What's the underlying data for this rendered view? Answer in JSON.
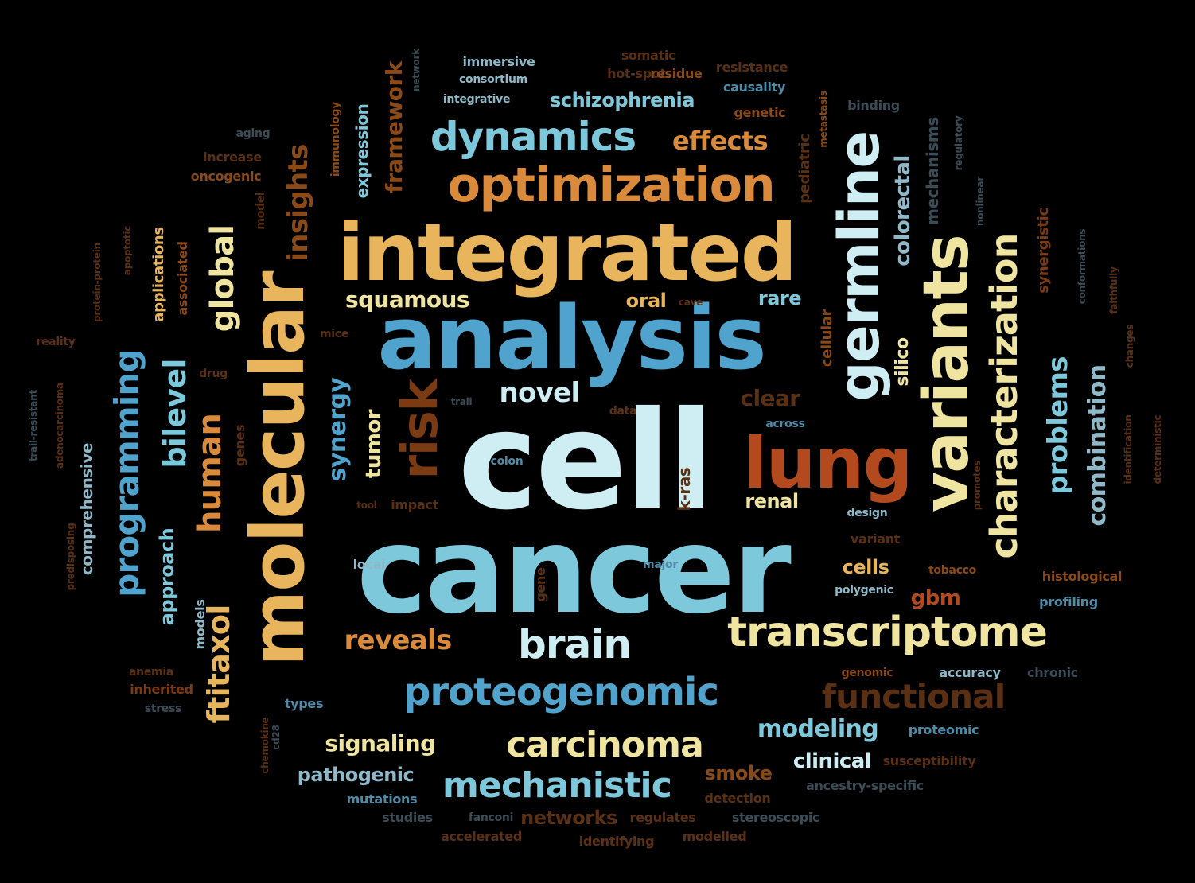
{
  "palette": {
    "cyan": "#cfeef3",
    "lightblue": "#7ec8dc",
    "blue": "#4fa3cc",
    "midblue": "#6fb4d6",
    "yellow": "#efe4a0",
    "gold": "#e8b45c",
    "orange": "#d98a3a",
    "rust": "#b24a1e",
    "brown": "#7a3a12",
    "darkorange": "#8a4a18",
    "slate": "#8fb9c9",
    "dimblue": "#4f8aa6",
    "dimbrown": "#5a3014",
    "dimgray": "#3a4c55"
  },
  "words": [
    {
      "text": "cell",
      "c": "cyan"
    },
    {
      "text": "cancer",
      "c": "lightblue"
    },
    {
      "text": "analysis",
      "c": "blue"
    },
    {
      "text": "integrated",
      "c": "gold"
    },
    {
      "text": "molecular",
      "c": "gold"
    },
    {
      "text": "lung",
      "c": "rust"
    },
    {
      "text": "variants",
      "c": "yellow"
    },
    {
      "text": "germline",
      "c": "cyan"
    },
    {
      "text": "optimization",
      "c": "orange"
    },
    {
      "text": "dynamics",
      "c": "lightblue"
    },
    {
      "text": "transcriptome",
      "c": "yellow"
    },
    {
      "text": "brain",
      "c": "cyan"
    },
    {
      "text": "proteogenomic",
      "c": "blue"
    },
    {
      "text": "characterization",
      "c": "yellow"
    },
    {
      "text": "carcinoma",
      "c": "yellow"
    },
    {
      "text": "mechanistic",
      "c": "lightblue"
    },
    {
      "text": "functional",
      "c": "dimbrown"
    },
    {
      "text": "programming",
      "c": "blue"
    },
    {
      "text": "human",
      "c": "orange"
    },
    {
      "text": "risk",
      "c": "brown"
    },
    {
      "text": "ftitaxol",
      "c": "gold"
    },
    {
      "text": "global",
      "c": "yellow"
    },
    {
      "text": "bilevel",
      "c": "lightblue"
    },
    {
      "text": "insights",
      "c": "darkorange"
    },
    {
      "text": "problems",
      "c": "lightblue"
    },
    {
      "text": "combination",
      "c": "slate"
    },
    {
      "text": "synergy",
      "c": "blue"
    },
    {
      "text": "framework",
      "c": "darkorange"
    },
    {
      "text": "schizophrenia",
      "c": "lightblue"
    },
    {
      "text": "effects",
      "c": "orange"
    },
    {
      "text": "squamous",
      "c": "yellow"
    },
    {
      "text": "novel",
      "c": "cyan"
    },
    {
      "text": "reveals",
      "c": "orange"
    },
    {
      "text": "modeling",
      "c": "lightblue"
    },
    {
      "text": "signaling",
      "c": "yellow"
    },
    {
      "text": "pathogenic",
      "c": "slate"
    },
    {
      "text": "clinical",
      "c": "cyan"
    },
    {
      "text": "smoke",
      "c": "darkorange"
    },
    {
      "text": "networks",
      "c": "dimbrown"
    },
    {
      "text": "tumor",
      "c": "yellow"
    },
    {
      "text": "colorectal",
      "c": "slate"
    },
    {
      "text": "renal",
      "c": "yellow"
    },
    {
      "text": "clear",
      "c": "dimbrown"
    },
    {
      "text": "oral",
      "c": "gold"
    },
    {
      "text": "rare",
      "c": "lightblue"
    },
    {
      "text": "cells",
      "c": "gold"
    },
    {
      "text": "gbm",
      "c": "rust"
    },
    {
      "text": "silico",
      "c": "yellow"
    },
    {
      "text": "approach",
      "c": "lightblue"
    },
    {
      "text": "expression",
      "c": "lightblue"
    },
    {
      "text": "comprehensive",
      "c": "slate"
    },
    {
      "text": "mechanisms",
      "c": "dimgray"
    },
    {
      "text": "synergistic",
      "c": "brown"
    },
    {
      "text": "pediatric",
      "c": "dimbrown"
    },
    {
      "text": "cellular",
      "c": "darkorange"
    },
    {
      "text": "applications",
      "c": "gold"
    },
    {
      "text": "associated",
      "c": "darkorange"
    },
    {
      "text": "genes",
      "c": "dimbrown"
    },
    {
      "text": "gene",
      "c": "dimbrown"
    },
    {
      "text": "k-ras",
      "c": "dimbrown"
    },
    {
      "text": "models",
      "c": "slate"
    },
    {
      "text": "immersive",
      "c": "slate"
    },
    {
      "text": "consortium",
      "c": "slate"
    },
    {
      "text": "integrative",
      "c": "slate"
    },
    {
      "text": "somatic",
      "c": "dimbrown"
    },
    {
      "text": "hot-spot",
      "c": "dimbrown"
    },
    {
      "text": "residue",
      "c": "darkorange"
    },
    {
      "text": "causality",
      "c": "dimblue"
    },
    {
      "text": "genetic",
      "c": "darkorange"
    },
    {
      "text": "increase",
      "c": "dimbrown"
    },
    {
      "text": "oncogenic",
      "c": "darkorange"
    },
    {
      "text": "immunology",
      "c": "darkorange"
    },
    {
      "text": "aging",
      "c": "dimgray"
    },
    {
      "text": "network",
      "c": "dimgray"
    },
    {
      "text": "metastasis",
      "c": "darkorange"
    },
    {
      "text": "regulatory",
      "c": "dimgray"
    },
    {
      "text": "binding",
      "c": "dimgray"
    },
    {
      "text": "resistance",
      "c": "dimbrown"
    },
    {
      "text": "model",
      "c": "dimbrown"
    },
    {
      "text": "apoptotic",
      "c": "dimbrown"
    },
    {
      "text": "protein-protein",
      "c": "dimbrown"
    },
    {
      "text": "reality",
      "c": "dimbrown"
    },
    {
      "text": "adenocarcinoma",
      "c": "dimbrown"
    },
    {
      "text": "trail-resistant",
      "c": "dimgray"
    },
    {
      "text": "predisposing",
      "c": "dimbrown"
    },
    {
      "text": "mice",
      "c": "dimbrown"
    },
    {
      "text": "drug",
      "c": "dimbrown"
    },
    {
      "text": "cave",
      "c": "dimbrown"
    },
    {
      "text": "trail",
      "c": "dimgray"
    },
    {
      "text": "data",
      "c": "dimbrown"
    },
    {
      "text": "across",
      "c": "dimblue"
    },
    {
      "text": "colon",
      "c": "dimblue"
    },
    {
      "text": "tool",
      "c": "dimbrown"
    },
    {
      "text": "impact",
      "c": "dimbrown"
    },
    {
      "text": "design",
      "c": "slate"
    },
    {
      "text": "variant",
      "c": "dimbrown"
    },
    {
      "text": "local",
      "c": "slate"
    },
    {
      "text": "major",
      "c": "dimblue"
    },
    {
      "text": "tobacco",
      "c": "darkorange"
    },
    {
      "text": "polygenic",
      "c": "slate"
    },
    {
      "text": "histological",
      "c": "darkorange"
    },
    {
      "text": "profiling",
      "c": "dimblue"
    },
    {
      "text": "genomic",
      "c": "darkorange"
    },
    {
      "text": "accuracy",
      "c": "slate"
    },
    {
      "text": "chronic",
      "c": "dimgray"
    },
    {
      "text": "anemia",
      "c": "dimbrown"
    },
    {
      "text": "inherited",
      "c": "brown"
    },
    {
      "text": "stress",
      "c": "dimgray"
    },
    {
      "text": "types",
      "c": "dimblue"
    },
    {
      "text": "chemokine",
      "c": "dimbrown"
    },
    {
      "text": "cd28",
      "c": "dimgray"
    },
    {
      "text": "mutations",
      "c": "dimblue"
    },
    {
      "text": "studies",
      "c": "dimgray"
    },
    {
      "text": "fanconi",
      "c": "dimgray"
    },
    {
      "text": "accelerated",
      "c": "dimbrown"
    },
    {
      "text": "regulates",
      "c": "dimbrown"
    },
    {
      "text": "identifying",
      "c": "dimbrown"
    },
    {
      "text": "modelled",
      "c": "dimbrown"
    },
    {
      "text": "stereoscopic",
      "c": "dimgray"
    },
    {
      "text": "detection",
      "c": "dimbrown"
    },
    {
      "text": "susceptibility",
      "c": "dimbrown"
    },
    {
      "text": "ancestry-specific",
      "c": "dimgray"
    },
    {
      "text": "proteomic",
      "c": "dimblue"
    },
    {
      "text": "promotes",
      "c": "dimbrown"
    },
    {
      "text": "identification",
      "c": "dimbrown"
    },
    {
      "text": "deterministic",
      "c": "dimbrown"
    },
    {
      "text": "conformations",
      "c": "dimgray"
    },
    {
      "text": "faithfully",
      "c": "dimbrown"
    },
    {
      "text": "changes",
      "c": "dimbrown"
    },
    {
      "text": "nonlinear",
      "c": "dimgray"
    }
  ]
}
